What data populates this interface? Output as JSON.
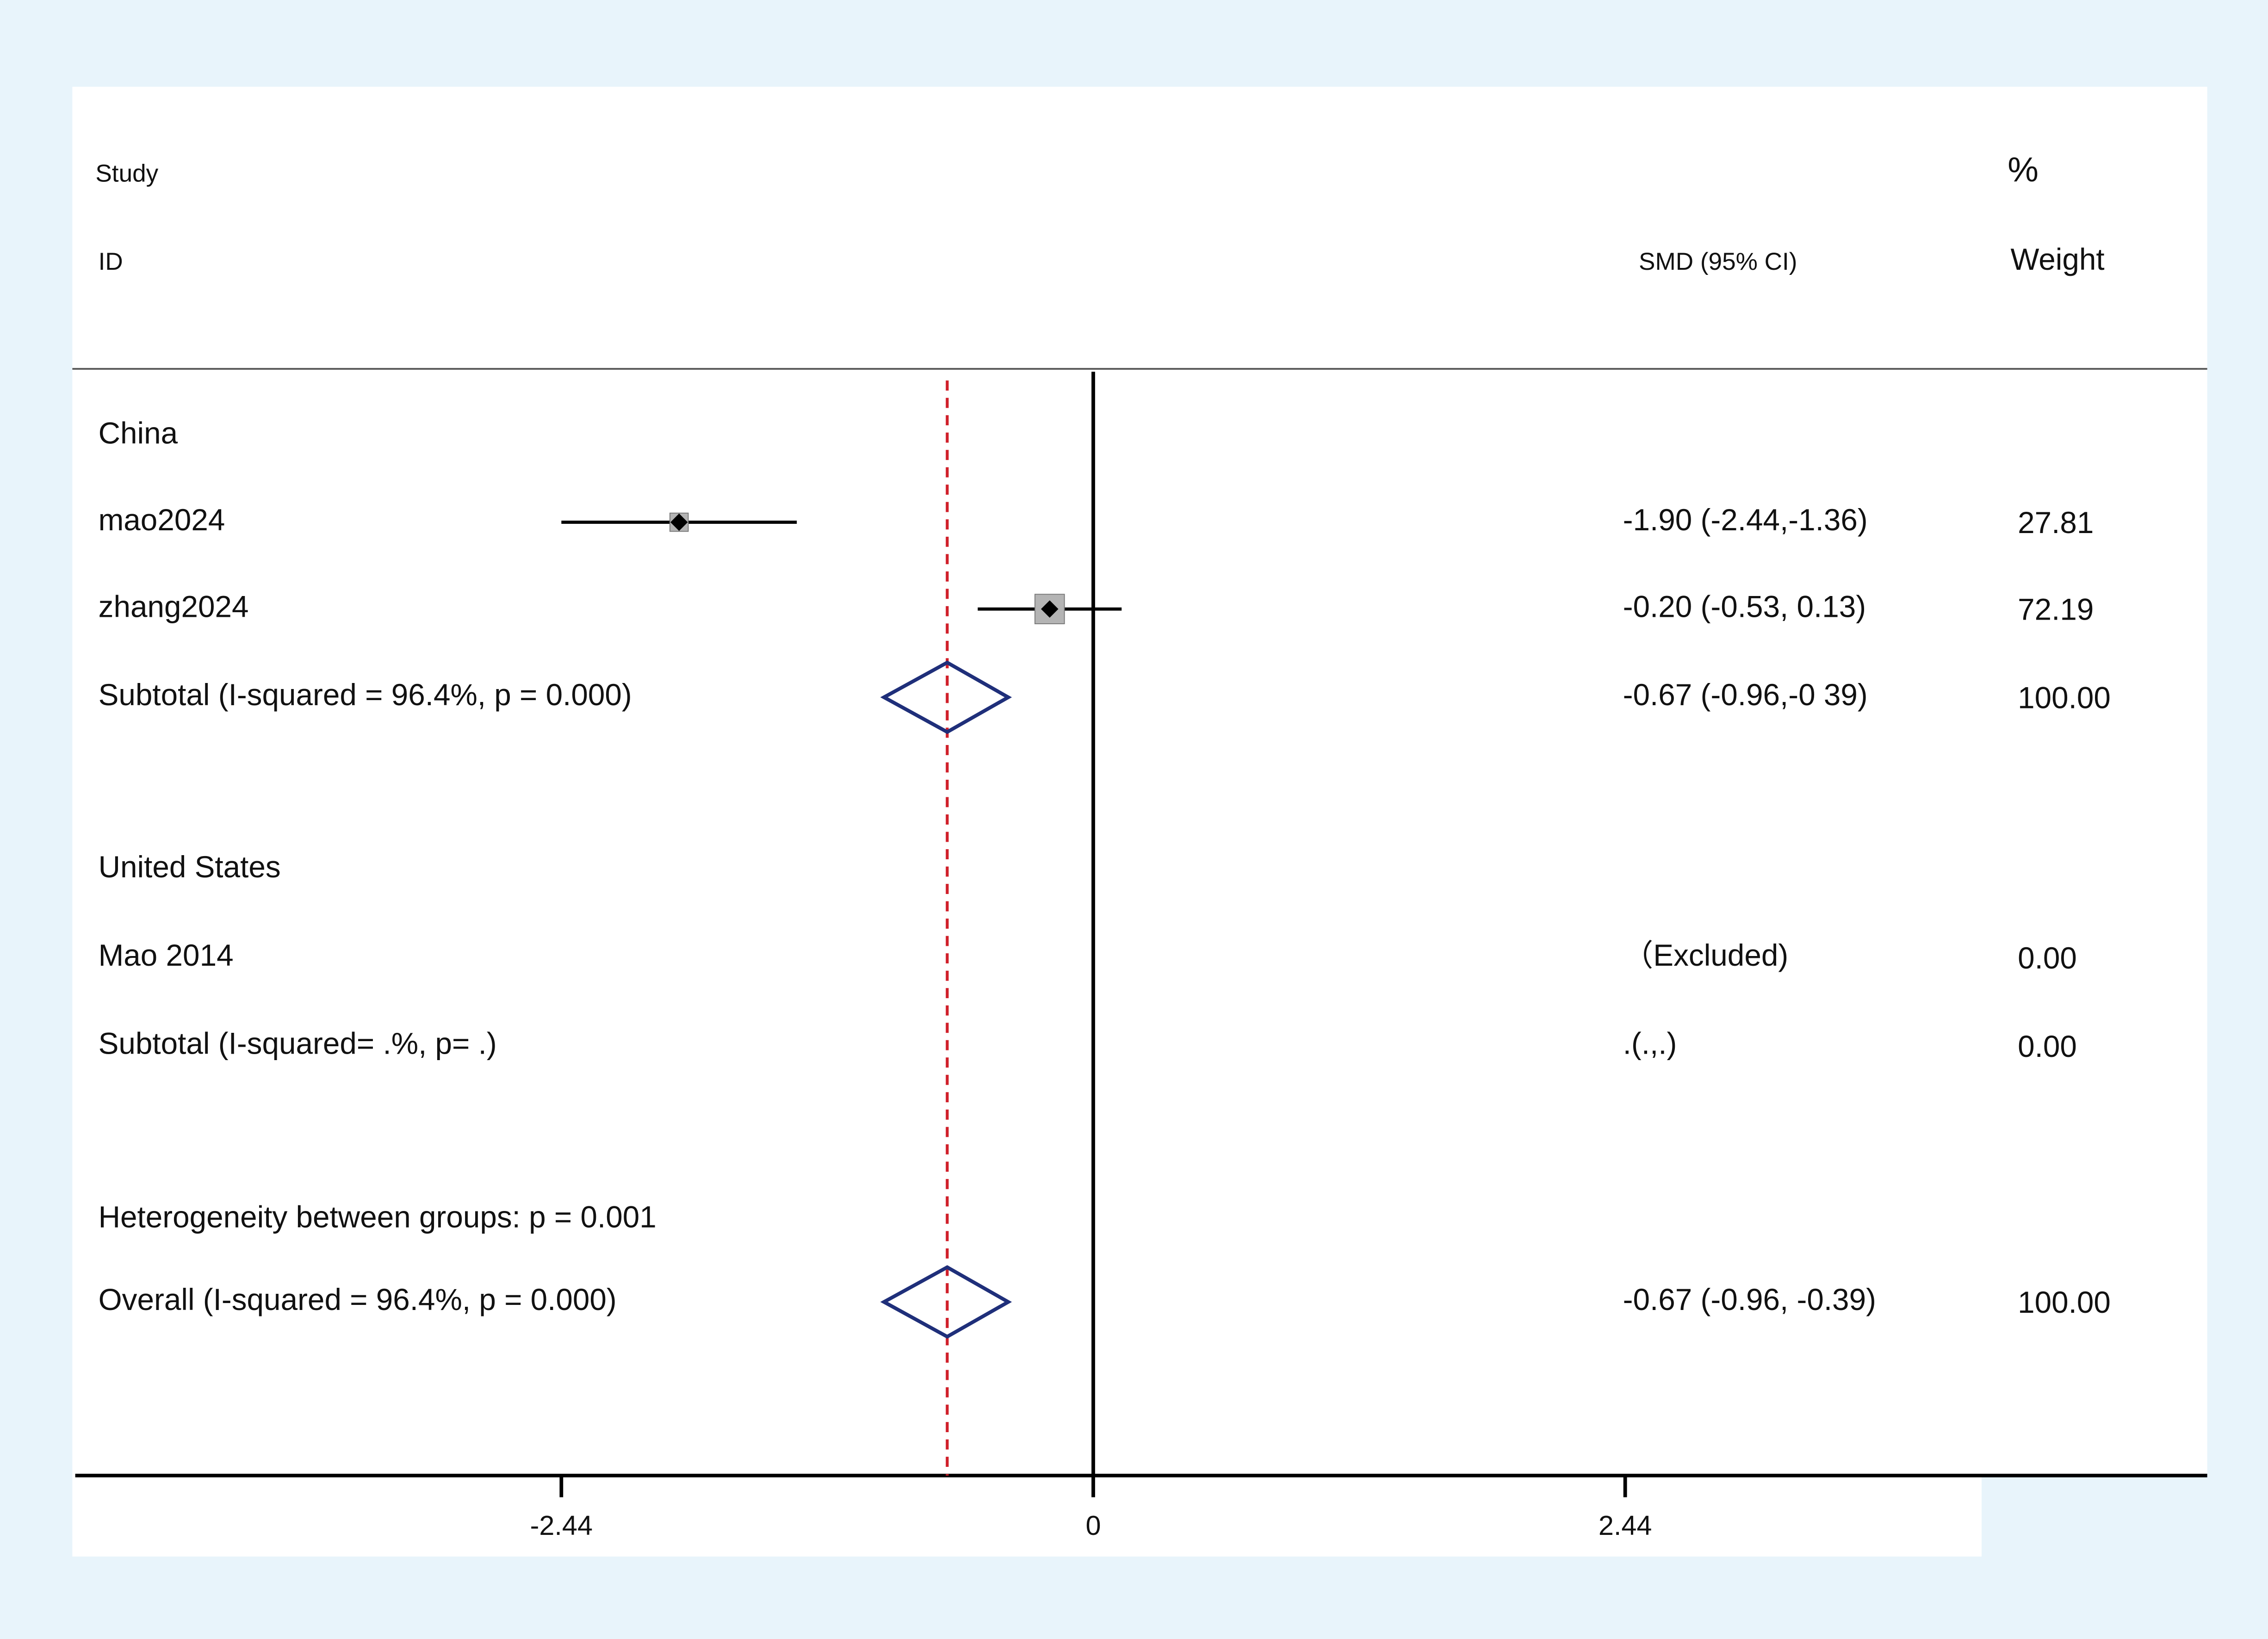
{
  "chart_data": {
    "type": "forest",
    "header": {
      "study": "Study",
      "id": "ID",
      "effect": "SMD (95% CI)",
      "percent": "%",
      "weight": "Weight"
    },
    "rows": [
      {
        "label": "China"
      },
      {
        "label": "mao2024",
        "marker": "square",
        "est": -1.9,
        "lo": -2.44,
        "hi": -1.36,
        "ci_label": "-1.90 (-2.44,-1.36)",
        "weight": 27.81
      },
      {
        "label": "zhang2024",
        "marker": "square",
        "est": -0.2,
        "lo": -0.53,
        "hi": 0.13,
        "ci_label": "-0.20 (-0.53, 0.13)",
        "weight": 72.19
      },
      {
        "label": "Subtotal (I-squared = 96.4%, p = 0.000)",
        "marker": "diamond",
        "est": -0.67,
        "lo": -0.96,
        "hi": -0.39,
        "ci_label": "-0.67 (-0.96,-0 39)",
        "weight": 100,
        "weight_label": "100.00"
      },
      {
        "label": "United States"
      },
      {
        "label": "Mao 2014",
        "ci_label": "（Excluded)",
        "weight": 0,
        "weight_label": "0.00"
      },
      {
        "label": "Subtotal (I-squared= .%, p= .)",
        "ci_label": ".(.,.)",
        "weight": 0,
        "weight_label": "0.00"
      },
      {
        "label": "Heterogeneity between groups: p = 0.001"
      },
      {
        "label": "Overall (I-squared = 96.4%, p = 0.000)",
        "marker": "diamond",
        "est": -0.67,
        "lo": -0.96,
        "hi": -0.39,
        "ci_label": "-0.67 (-0.96,  -0.39)",
        "weight": 100,
        "weight_label": "100.00"
      }
    ],
    "xlim": [
      -4.67,
      5.11
    ],
    "xticks": [
      -2.44,
      0,
      2.44
    ],
    "box_color": "#b4b4b4",
    "diamond_color": "#1f2f7a",
    "overall_line_color": "#d0202a"
  }
}
